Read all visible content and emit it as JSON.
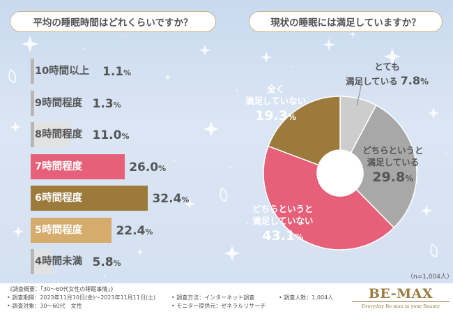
{
  "colors": {
    "gray_bar": "#e2e2e2",
    "gray_mark": "#b6b6b6",
    "pink": "#e6607a",
    "brown": "#9c7a3c",
    "gold": "#d6ac6c",
    "pie_light": "#cdcdcd",
    "pie_mid": "#a8a8a8",
    "pie_pink": "#e6607a",
    "pie_brown": "#9c7a3c"
  },
  "chart_data": [
    {
      "type": "bar",
      "orientation": "horizontal",
      "title": "平均の睡眠時間はどれくらいですか？",
      "categories": [
        "10時間以上",
        "9時間程度",
        "8時間程度",
        "7時間程度",
        "6時間程度",
        "5時間程度",
        "4時間未満"
      ],
      "values": [
        1.1,
        1.3,
        11.0,
        26.0,
        32.4,
        22.4,
        5.8
      ],
      "value_labels": [
        "1.1",
        "1.3",
        "11.0",
        "26.0",
        "32.4",
        "22.4",
        "5.8"
      ],
      "unit": "%"
    },
    {
      "type": "pie",
      "title": "現状の睡眠には満足していますか？",
      "labels": [
        "とても満足している",
        "どちらというと満足している",
        "どちらというと満足していない",
        "全く満足していない"
      ],
      "label_lines": [
        [
          "とても",
          "満足している"
        ],
        [
          "どちらというと",
          "満足している"
        ],
        [
          "どちらというと",
          "満足していない"
        ],
        [
          "全く",
          "満足していない"
        ]
      ],
      "values": [
        7.8,
        29.8,
        43.1,
        19.3
      ],
      "value_labels": [
        "7.8",
        "29.8",
        "43.1",
        "19.3"
      ],
      "unit": "%",
      "note": "（n=1,004人）"
    }
  ],
  "footer": {
    "overview": "《調査概要：「30～60代女性の睡眠事情」》",
    "period": "• 調査期間：2023年11月10日(金)～2023年11月11日(土)",
    "target": "• 調査対象：30～60代　女性",
    "method": "• 調査方法：インターネット調査",
    "provider": "• モニター提供元：ゼネラルリサーチ",
    "count": "• 調査人数：1,004人"
  },
  "logo": {
    "main": "BE-MAX",
    "sub": "Everyday Be max in your Beauty"
  }
}
